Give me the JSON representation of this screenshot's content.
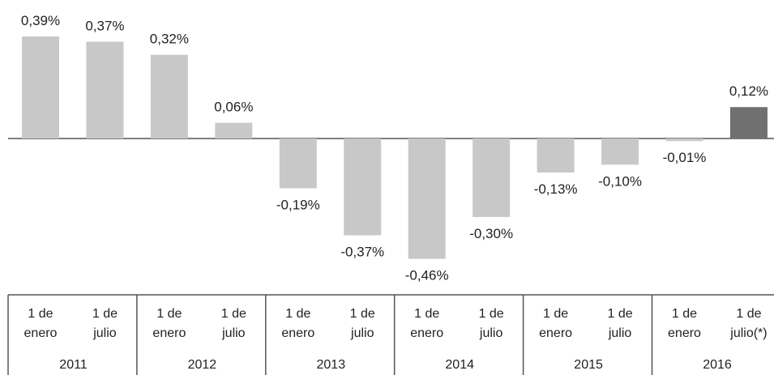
{
  "chart_data": {
    "type": "bar",
    "categories": [
      "1 de enero",
      "1 de julio",
      "1 de enero",
      "1 de julio",
      "1 de enero",
      "1 de julio",
      "1 de enero",
      "1 de julio",
      "1 de enero",
      "1 de julio",
      "1 de enero",
      "1 de julio(*)"
    ],
    "groups": [
      "2011",
      "2012",
      "2013",
      "2014",
      "2015",
      "2016"
    ],
    "values": [
      0.39,
      0.37,
      0.32,
      0.06,
      -0.19,
      -0.37,
      -0.46,
      -0.3,
      -0.13,
      -0.1,
      -0.01,
      0.12
    ],
    "value_labels": [
      "0,39%",
      "0,37%",
      "0,32%",
      "0,06%",
      "-0,19%",
      "-0,37%",
      "-0,46%",
      "-0,30%",
      "-0,13%",
      "-0,10%",
      "-0,01%",
      "0,12%"
    ],
    "colors": [
      "#c8c8c8",
      "#c8c8c8",
      "#c8c8c8",
      "#c8c8c8",
      "#c8c8c8",
      "#c8c8c8",
      "#c8c8c8",
      "#c8c8c8",
      "#c8c8c8",
      "#c8c8c8",
      "#c8c8c8",
      "#707070"
    ]
  }
}
